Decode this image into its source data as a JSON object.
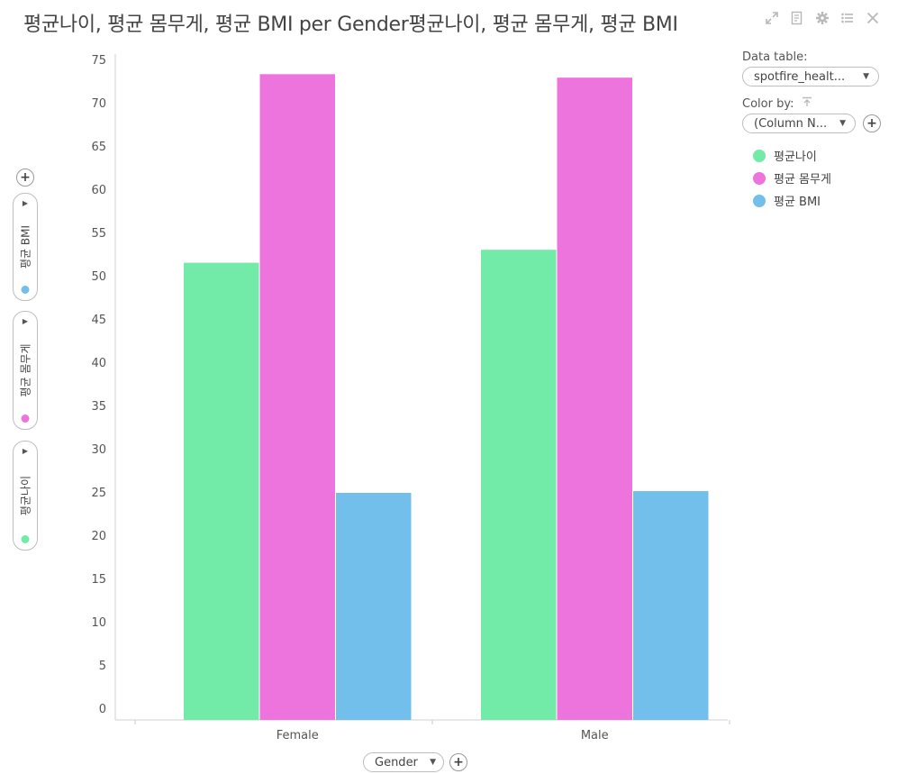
{
  "title": "평균나이, 평균 몸무게, 평균 BMI per Gender평균나이, 평균 몸무게, 평균 BMI",
  "toolbar": {
    "icons": [
      "maximize-icon",
      "export-icon",
      "settings-icon",
      "legend-list-icon",
      "close-icon"
    ]
  },
  "panel": {
    "data_table_label": "Data table:",
    "data_table_value": "spotfire_healt...",
    "color_by_label": "Color by:",
    "color_by_value": "(Column N..."
  },
  "legend": [
    {
      "label": "평균나이",
      "color": "#72eaa8"
    },
    {
      "label": "평균 몸무게",
      "color": "#ec74dc"
    },
    {
      "label": "평균 BMI",
      "color": "#72bfec"
    }
  ],
  "y_selectors": [
    {
      "label": "평균 BMI",
      "color": "#72bfec"
    },
    {
      "label": "평균 몸무게",
      "color": "#ec74dc"
    },
    {
      "label": "평균나이",
      "color": "#72eaa8"
    }
  ],
  "x_selector": {
    "label": "Gender"
  },
  "chart_data": {
    "type": "bar",
    "categories": [
      "Female",
      "Male"
    ],
    "series": [
      {
        "name": "평균나이",
        "color": "#72eaa8",
        "values": [
          51.5,
          53.0
        ]
      },
      {
        "name": "평균 몸무게",
        "color": "#ec74dc",
        "values": [
          73.3,
          72.9
        ]
      },
      {
        "name": "평균 BMI",
        "color": "#72bfec",
        "values": [
          24.9,
          25.1
        ]
      }
    ],
    "ylim": [
      0,
      75
    ],
    "yticks": [
      0,
      5,
      10,
      15,
      20,
      25,
      30,
      35,
      40,
      45,
      50,
      55,
      60,
      65,
      70,
      75
    ],
    "title": "평균나이, 평균 몸무게, 평균 BMI per Gender평균나이, 평균 몸무게, 평균 BMI",
    "xlabel": "Gender",
    "ylabel": ""
  }
}
